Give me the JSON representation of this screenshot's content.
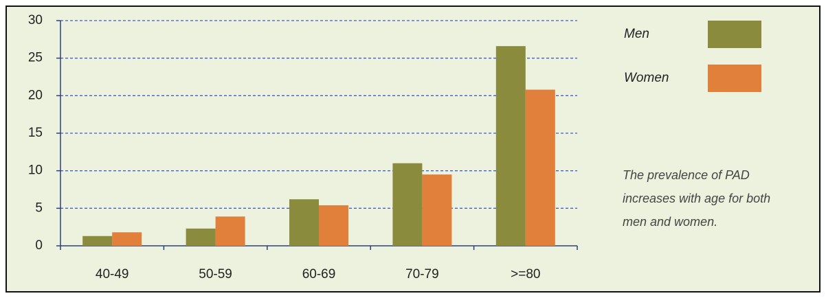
{
  "chart_data": {
    "type": "bar",
    "categories": [
      "40-49",
      "50-59",
      "60-69",
      "70-79",
      ">=80"
    ],
    "series": [
      {
        "name": "Men",
        "color": "#8a8b3d",
        "values": [
          1.3,
          2.3,
          6.2,
          11.0,
          26.6
        ]
      },
      {
        "name": "Women",
        "color": "#e0803a",
        "values": [
          1.8,
          3.9,
          5.4,
          9.5,
          20.8
        ]
      }
    ],
    "ylim": [
      0,
      30
    ],
    "yticks": [
      0,
      5,
      10,
      15,
      20,
      25,
      30
    ],
    "grid": true,
    "annotation": "The prevalence of PAD increases with age for both men and women."
  }
}
